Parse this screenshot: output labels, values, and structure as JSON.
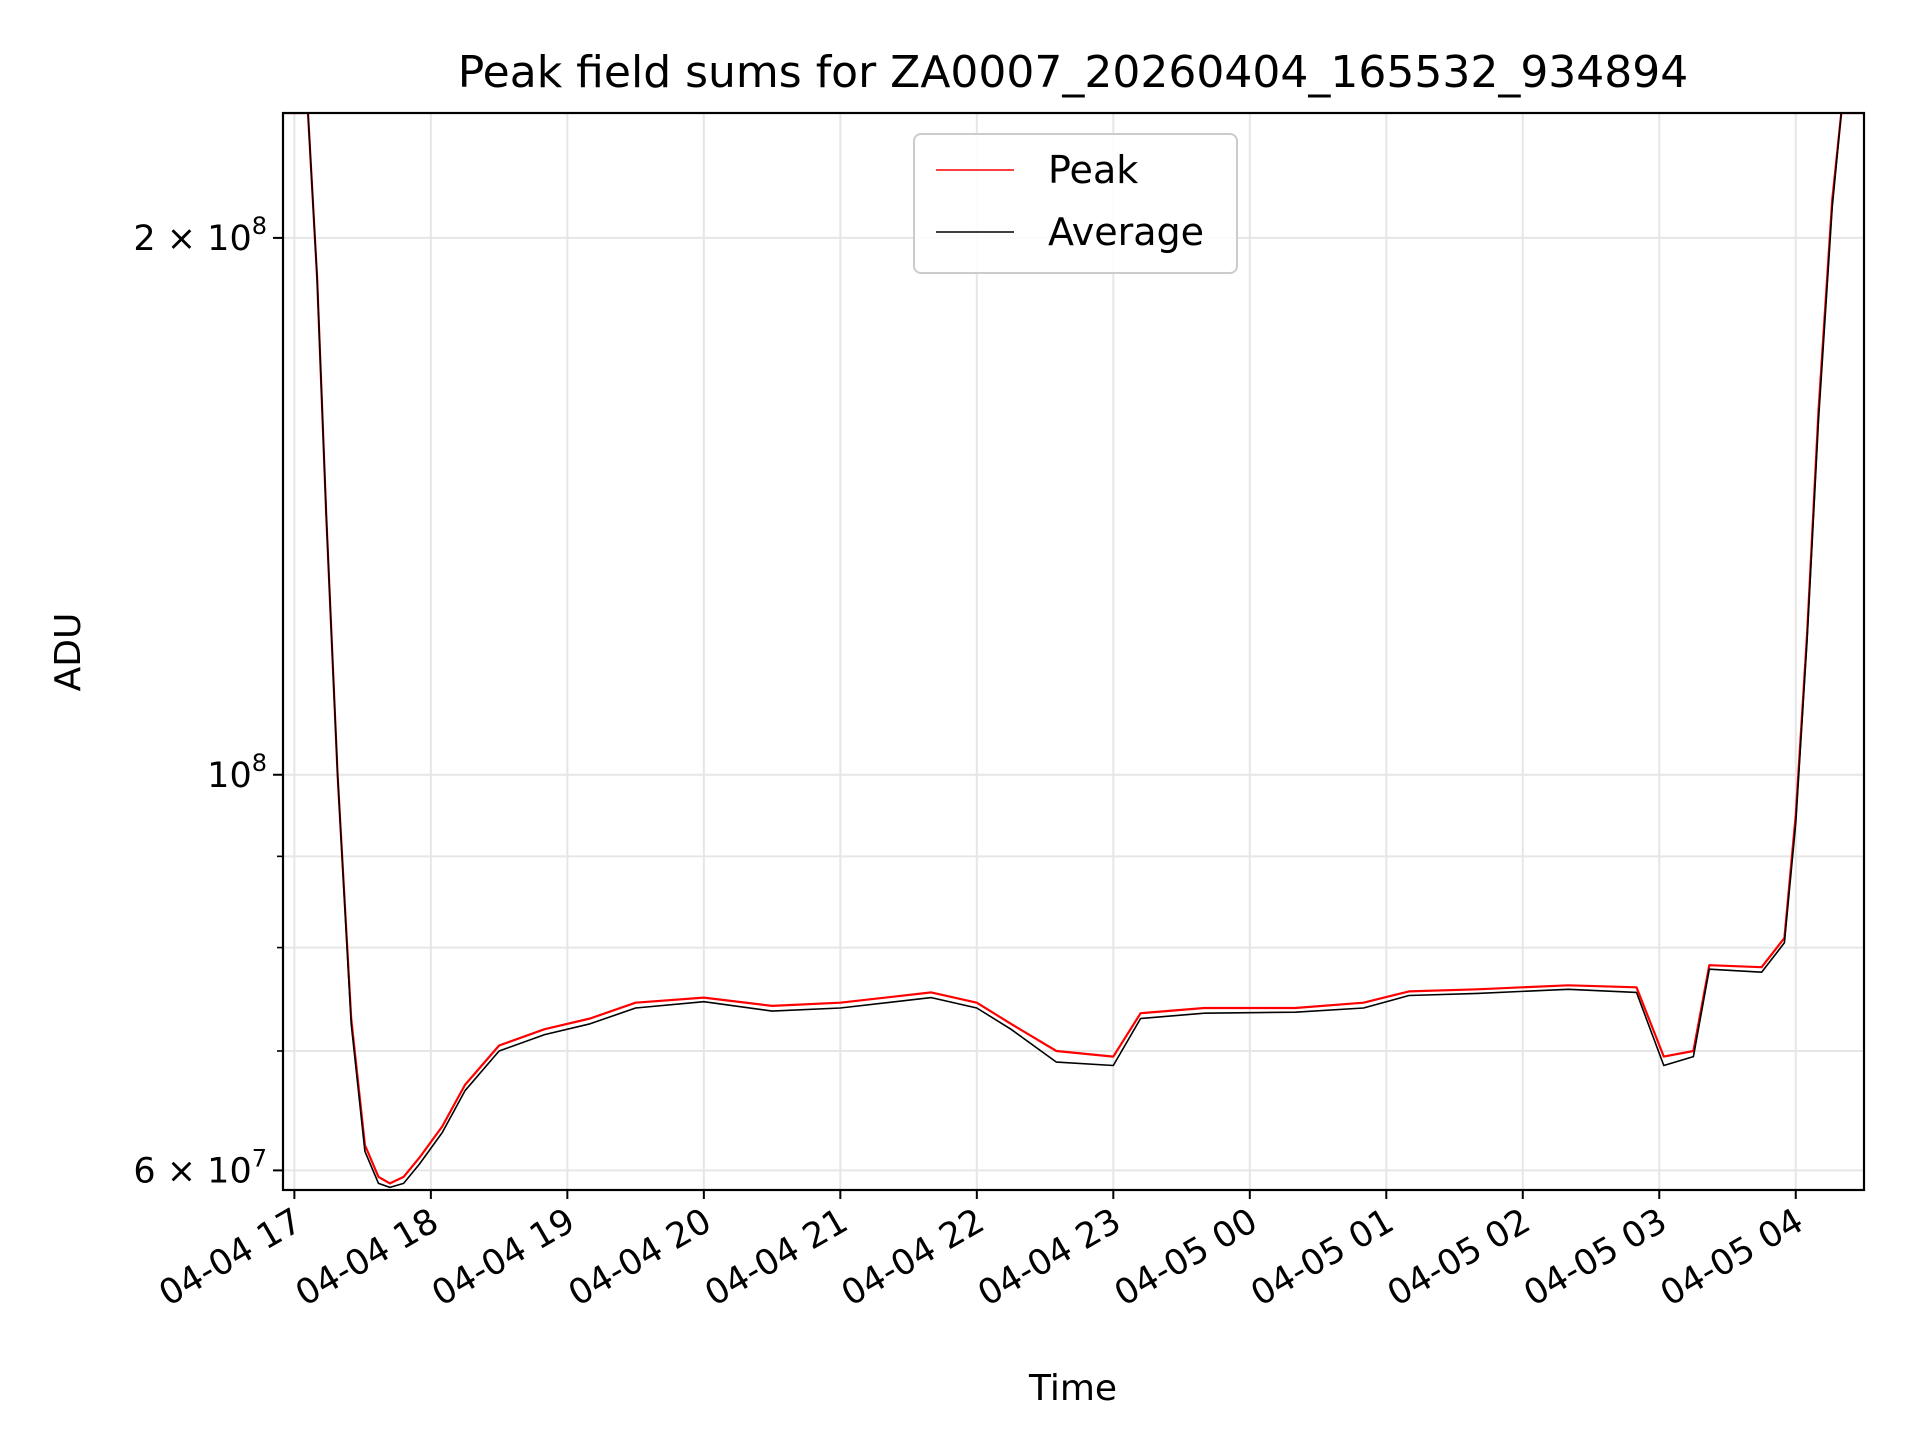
{
  "chart_data": {
    "type": "line",
    "title": "Peak field sums for ZA0007_20260404_165532_934894",
    "xlabel": "Time",
    "ylabel": "ADU",
    "yscale": "log",
    "ylim": [
      58500000,
      235000000
    ],
    "xlim": [
      "2026-04-04 16:55",
      "2026-04-05 04:30"
    ],
    "grid": true,
    "legend_position": "upper center",
    "x_ticks": [
      "04-04 17",
      "04-04 18",
      "04-04 19",
      "04-04 20",
      "04-04 21",
      "04-04 22",
      "04-04 23",
      "04-05 00",
      "04-05 01",
      "04-05 02",
      "04-05 03",
      "04-05 04"
    ],
    "y_ticks": [
      {
        "value": 60000000,
        "base": "6 × 10",
        "exp": "7"
      },
      {
        "value": 100000000,
        "base": "10",
        "exp": "8"
      },
      {
        "value": 200000000,
        "base": "2 × 10",
        "exp": "8"
      }
    ],
    "y_minor_ticks": [
      70000000,
      80000000,
      90000000
    ],
    "series": [
      {
        "name": "Peak",
        "color": "#ff0000",
        "points": [
          [
            "2026-04-04 16:55",
            235000000
          ],
          [
            "2026-04-04 17:06",
            235000000
          ],
          [
            "2026-04-04 17:10",
            190000000
          ],
          [
            "2026-04-04 17:14",
            140000000
          ],
          [
            "2026-04-04 17:19",
            100000000
          ],
          [
            "2026-04-04 17:25",
            73000000
          ],
          [
            "2026-04-04 17:31",
            62000000
          ],
          [
            "2026-04-04 17:37",
            59500000
          ],
          [
            "2026-04-04 17:42",
            59000000
          ],
          [
            "2026-04-04 17:48",
            59500000
          ],
          [
            "2026-04-04 17:55",
            61000000
          ],
          [
            "2026-04-04 18:05",
            63500000
          ],
          [
            "2026-04-04 18:15",
            67000000
          ],
          [
            "2026-04-04 18:30",
            70500000
          ],
          [
            "2026-04-04 18:50",
            72000000
          ],
          [
            "2026-04-04 19:10",
            73000000
          ],
          [
            "2026-04-04 19:30",
            74500000
          ],
          [
            "2026-04-04 20:00",
            75000000
          ],
          [
            "2026-04-04 20:30",
            74200000
          ],
          [
            "2026-04-04 21:00",
            74500000
          ],
          [
            "2026-04-04 21:40",
            75500000
          ],
          [
            "2026-04-04 22:00",
            74500000
          ],
          [
            "2026-04-04 22:15",
            72500000
          ],
          [
            "2026-04-04 22:35",
            70000000
          ],
          [
            "2026-04-04 23:00",
            69500000
          ],
          [
            "2026-04-04 23:12",
            73500000
          ],
          [
            "2026-04-04 23:40",
            74000000
          ],
          [
            "2026-04-05 00:20",
            74000000
          ],
          [
            "2026-04-05 00:50",
            74500000
          ],
          [
            "2026-04-05 01:10",
            75600000
          ],
          [
            "2026-04-05 01:40",
            75800000
          ],
          [
            "2026-04-05 02:20",
            76200000
          ],
          [
            "2026-04-05 02:50",
            76000000
          ],
          [
            "2026-04-05 03:02",
            69500000
          ],
          [
            "2026-04-05 03:15",
            70000000
          ],
          [
            "2026-04-05 03:22",
            78200000
          ],
          [
            "2026-04-05 03:45",
            78000000
          ],
          [
            "2026-04-05 03:55",
            81000000
          ],
          [
            "2026-04-05 04:00",
            95000000
          ],
          [
            "2026-04-05 04:05",
            120000000
          ],
          [
            "2026-04-05 04:10",
            160000000
          ],
          [
            "2026-04-05 04:16",
            210000000
          ],
          [
            "2026-04-05 04:20",
            235000000
          ],
          [
            "2026-04-05 04:30",
            235000000
          ]
        ]
      },
      {
        "name": "Average",
        "color": "#000000",
        "points": [
          [
            "2026-04-04 16:55",
            235000000
          ],
          [
            "2026-04-04 17:06",
            235000000
          ],
          [
            "2026-04-04 17:10",
            190000000
          ],
          [
            "2026-04-04 17:14",
            140000000
          ],
          [
            "2026-04-04 17:19",
            100000000
          ],
          [
            "2026-04-04 17:25",
            72500000
          ],
          [
            "2026-04-04 17:31",
            61500000
          ],
          [
            "2026-04-04 17:37",
            59000000
          ],
          [
            "2026-04-04 17:42",
            58700000
          ],
          [
            "2026-04-04 17:48",
            59000000
          ],
          [
            "2026-04-04 17:55",
            60500000
          ],
          [
            "2026-04-04 18:05",
            63000000
          ],
          [
            "2026-04-04 18:15",
            66500000
          ],
          [
            "2026-04-04 18:30",
            70000000
          ],
          [
            "2026-04-04 18:50",
            71500000
          ],
          [
            "2026-04-04 19:10",
            72500000
          ],
          [
            "2026-04-04 19:30",
            74000000
          ],
          [
            "2026-04-04 20:00",
            74600000
          ],
          [
            "2026-04-04 20:30",
            73700000
          ],
          [
            "2026-04-04 21:00",
            74000000
          ],
          [
            "2026-04-04 21:40",
            75000000
          ],
          [
            "2026-04-04 22:00",
            74000000
          ],
          [
            "2026-04-04 22:15",
            72000000
          ],
          [
            "2026-04-04 22:35",
            69000000
          ],
          [
            "2026-04-04 23:00",
            68700000
          ],
          [
            "2026-04-04 23:12",
            73000000
          ],
          [
            "2026-04-04 23:40",
            73500000
          ],
          [
            "2026-04-05 00:20",
            73600000
          ],
          [
            "2026-04-05 00:50",
            74000000
          ],
          [
            "2026-04-05 01:10",
            75200000
          ],
          [
            "2026-04-05 01:40",
            75400000
          ],
          [
            "2026-04-05 02:20",
            75800000
          ],
          [
            "2026-04-05 02:50",
            75500000
          ],
          [
            "2026-04-05 03:02",
            68700000
          ],
          [
            "2026-04-05 03:15",
            69500000
          ],
          [
            "2026-04-05 03:22",
            77800000
          ],
          [
            "2026-04-05 03:45",
            77500000
          ],
          [
            "2026-04-05 03:55",
            80500000
          ],
          [
            "2026-04-05 04:00",
            94000000
          ],
          [
            "2026-04-05 04:05",
            119000000
          ],
          [
            "2026-04-05 04:10",
            158000000
          ],
          [
            "2026-04-05 04:16",
            208000000
          ],
          [
            "2026-04-05 04:20",
            235000000
          ],
          [
            "2026-04-05 04:30",
            235000000
          ]
        ]
      }
    ]
  }
}
